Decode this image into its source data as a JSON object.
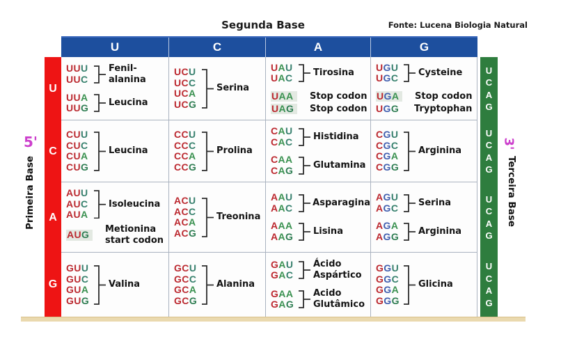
{
  "title": "Segunda Base",
  "source": "Fonte: Lucena Biologia Natural",
  "axes": {
    "left_prime": "5'",
    "left_label": "Primeira Base",
    "right_prime": "3'",
    "right_label": "Terceira Base",
    "second_base": [
      "U",
      "C",
      "A",
      "G"
    ],
    "first_base": [
      "U",
      "C",
      "A",
      "G"
    ],
    "third_base": [
      "U",
      "C",
      "A",
      "G"
    ]
  },
  "colors": {
    "header_blue": "#1d4f9e",
    "first_base_red": "#ee1414",
    "third_base_green": "#2e7d3e",
    "prime_magenta": "#cc3fcc",
    "codon_first": "#bb272e",
    "codon_mid_U": "#bb2b31",
    "codon_mid_C": "#bb2b31",
    "codon_mid_A": "#399150",
    "codon_mid_G": "#3f5dae",
    "codon_last_U": "#38806e",
    "codon_last_C": "#35806c",
    "codon_last_A": "#3a9150",
    "codon_last_G": "#2e7d52",
    "highlight_bg": "#e3e9e2",
    "strip_tan": "#ead9ae",
    "grid_line": "#a9b2bf"
  },
  "rows": [
    {
      "first_base": "U",
      "cells": [
        {
          "col": "U",
          "blocks": [
            {
              "type": "bracket",
              "codons": [
                "UUU",
                "UUC"
              ],
              "label_lines": [
                "Fenil-",
                "alanina"
              ]
            },
            {
              "type": "bracket",
              "codons": [
                "UUA",
                "UUG"
              ],
              "label_lines": [
                "Leucina"
              ]
            }
          ]
        },
        {
          "col": "C",
          "blocks": [
            {
              "type": "bracket",
              "codons": [
                "UCU",
                "UCC",
                "UCA",
                "UCG"
              ],
              "label_lines": [
                "Serina"
              ]
            }
          ]
        },
        {
          "col": "A",
          "blocks": [
            {
              "type": "bracket",
              "codons": [
                "UAU",
                "UAC"
              ],
              "label_lines": [
                "Tirosina"
              ]
            },
            {
              "type": "lines",
              "lines": [
                {
                  "codon": "UAA",
                  "highlight": true,
                  "label_lines": [
                    "Stop codon"
                  ]
                },
                {
                  "codon": "UAG",
                  "highlight": true,
                  "label_lines": [
                    "Stop codon"
                  ]
                }
              ]
            }
          ]
        },
        {
          "col": "G",
          "blocks": [
            {
              "type": "bracket",
              "codons": [
                "UGU",
                "UGC"
              ],
              "label_lines": [
                "Cysteine"
              ]
            },
            {
              "type": "lines",
              "lines": [
                {
                  "codon": "UGA",
                  "highlight": true,
                  "label_lines": [
                    "Stop codon"
                  ]
                },
                {
                  "codon": "UGG",
                  "highlight": false,
                  "label_lines": [
                    "Tryptophan"
                  ]
                }
              ]
            }
          ]
        }
      ]
    },
    {
      "first_base": "C",
      "cells": [
        {
          "col": "U",
          "blocks": [
            {
              "type": "bracket",
              "codons": [
                "CUU",
                "CUC",
                "CUA",
                "CUG"
              ],
              "label_lines": [
                "Leucina"
              ]
            }
          ]
        },
        {
          "col": "C",
          "blocks": [
            {
              "type": "bracket",
              "codons": [
                "CCU",
                "CCC",
                "CCA",
                "CCG"
              ],
              "label_lines": [
                "Prolina"
              ]
            }
          ]
        },
        {
          "col": "A",
          "blocks": [
            {
              "type": "bracket",
              "codons": [
                "CAU",
                "CAC"
              ],
              "label_lines": [
                "Histidina"
              ]
            },
            {
              "type": "bracket",
              "codons": [
                "CAA",
                "CAG"
              ],
              "label_lines": [
                "Glutamina"
              ]
            }
          ]
        },
        {
          "col": "G",
          "blocks": [
            {
              "type": "bracket",
              "codons": [
                "CGU",
                "CGC",
                "CGA",
                "CGG"
              ],
              "label_lines": [
                "Arginina"
              ]
            }
          ]
        }
      ]
    },
    {
      "first_base": "A",
      "cells": [
        {
          "col": "U",
          "blocks": [
            {
              "type": "bracket",
              "codons": [
                "AUU",
                "AUC",
                "AUA"
              ],
              "label_lines": [
                "Isoleucina"
              ]
            },
            {
              "type": "lines",
              "lines": [
                {
                  "codon": "AUG",
                  "highlight": true,
                  "label_lines": [
                    "Metionina",
                    "start codon"
                  ]
                }
              ]
            }
          ]
        },
        {
          "col": "C",
          "blocks": [
            {
              "type": "bracket",
              "codons": [
                "ACU",
                "ACC",
                "ACA",
                "ACG"
              ],
              "label_lines": [
                "Treonina"
              ]
            }
          ]
        },
        {
          "col": "A",
          "blocks": [
            {
              "type": "bracket",
              "codons": [
                "AAU",
                "AAC"
              ],
              "label_lines": [
                "Asparagina"
              ]
            },
            {
              "type": "bracket",
              "codons": [
                "AAA",
                "AAG"
              ],
              "label_lines": [
                "Lisina"
              ]
            }
          ]
        },
        {
          "col": "G",
          "blocks": [
            {
              "type": "bracket",
              "codons": [
                "AGU",
                "AGC"
              ],
              "label_lines": [
                "Serina"
              ]
            },
            {
              "type": "bracket",
              "codons": [
                "AGA",
                "AGG"
              ],
              "label_lines": [
                "Arginina"
              ]
            }
          ]
        }
      ]
    },
    {
      "first_base": "G",
      "cells": [
        {
          "col": "U",
          "blocks": [
            {
              "type": "bracket",
              "codons": [
                "GUU",
                "GUC",
                "GUA",
                "GUG"
              ],
              "label_lines": [
                "Valina"
              ]
            }
          ]
        },
        {
          "col": "C",
          "blocks": [
            {
              "type": "bracket",
              "codons": [
                "GCU",
                "GCC",
                "GCA",
                "GCG"
              ],
              "label_lines": [
                "Alanina"
              ]
            }
          ]
        },
        {
          "col": "A",
          "blocks": [
            {
              "type": "bracket",
              "codons": [
                "GAU",
                "GAC"
              ],
              "label_lines": [
                "Ácido",
                "Aspártico"
              ]
            },
            {
              "type": "bracket",
              "codons": [
                "GAA",
                "GAG"
              ],
              "label_lines": [
                "Acido",
                "Glutâmico"
              ]
            }
          ]
        },
        {
          "col": "G",
          "blocks": [
            {
              "type": "bracket",
              "codons": [
                "GGU",
                "GGC",
                "GGA",
                "GGG"
              ],
              "label_lines": [
                "Glicina"
              ]
            }
          ]
        }
      ]
    }
  ]
}
